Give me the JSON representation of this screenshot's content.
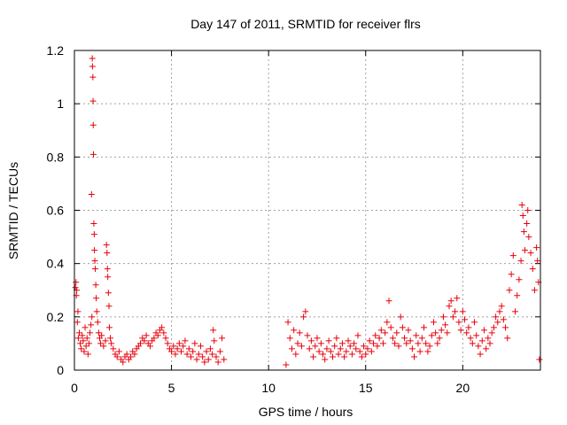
{
  "chart_data": {
    "type": "scatter",
    "title": "Day 147 of 2011, SRMTID for receiver flrs",
    "xlabel": "GPS time / hours",
    "ylabel": "SRMTID / TECUs",
    "xlim": [
      0,
      24
    ],
    "ylim": [
      0,
      1.2
    ],
    "xticks": [
      0,
      5,
      10,
      15,
      20
    ],
    "xtick_labels": [
      "0",
      "5",
      "10",
      "15",
      "20"
    ],
    "yticks": [
      0,
      0.2,
      0.4,
      0.6,
      0.8,
      1,
      1.2
    ],
    "ytick_labels": [
      "0",
      "0.2",
      "0.4",
      "0.6",
      "0.8",
      "1",
      "1.2"
    ],
    "grid": true,
    "marker": "+",
    "colors": {
      "series": "#e8000b",
      "grid": "#a0a0a0",
      "axis": "#000000"
    },
    "series": [
      {
        "name": "SRMTID",
        "points": [
          [
            0.05,
            0.31
          ],
          [
            0.08,
            0.33
          ],
          [
            0.1,
            0.28
          ],
          [
            0.12,
            0.3
          ],
          [
            0.15,
            0.18
          ],
          [
            0.18,
            0.22
          ],
          [
            0.2,
            0.12
          ],
          [
            0.25,
            0.14
          ],
          [
            0.3,
            0.1
          ],
          [
            0.35,
            0.08
          ],
          [
            0.4,
            0.13
          ],
          [
            0.45,
            0.11
          ],
          [
            0.5,
            0.07
          ],
          [
            0.55,
            0.16
          ],
          [
            0.6,
            0.09
          ],
          [
            0.65,
            0.12
          ],
          [
            0.7,
            0.06
          ],
          [
            0.75,
            0.1
          ],
          [
            0.8,
            0.14
          ],
          [
            0.85,
            0.17
          ],
          [
            0.9,
            0.2
          ],
          [
            0.92,
            1.17
          ],
          [
            0.93,
            1.14
          ],
          [
            0.95,
            1.1
          ],
          [
            0.96,
            1.01
          ],
          [
            0.97,
            0.92
          ],
          [
            0.98,
            0.81
          ],
          [
            0.88,
            0.66
          ],
          [
            1.0,
            0.55
          ],
          [
            1.02,
            0.51
          ],
          [
            1.03,
            0.45
          ],
          [
            1.05,
            0.41
          ],
          [
            1.07,
            0.38
          ],
          [
            1.1,
            0.32
          ],
          [
            1.12,
            0.27
          ],
          [
            1.15,
            0.22
          ],
          [
            1.2,
            0.18
          ],
          [
            1.25,
            0.14
          ],
          [
            1.3,
            0.12
          ],
          [
            1.35,
            0.1
          ],
          [
            1.4,
            0.13
          ],
          [
            1.5,
            0.09
          ],
          [
            1.6,
            0.11
          ],
          [
            1.65,
            0.47
          ],
          [
            1.68,
            0.44
          ],
          [
            1.7,
            0.38
          ],
          [
            1.72,
            0.35
          ],
          [
            1.75,
            0.29
          ],
          [
            1.78,
            0.24
          ],
          [
            1.8,
            0.16
          ],
          [
            1.85,
            0.12
          ],
          [
            1.9,
            0.1
          ],
          [
            2.0,
            0.08
          ],
          [
            2.1,
            0.06
          ],
          [
            2.2,
            0.05
          ],
          [
            2.3,
            0.07
          ],
          [
            2.4,
            0.04
          ],
          [
            2.5,
            0.03
          ],
          [
            2.6,
            0.05
          ],
          [
            2.7,
            0.06
          ],
          [
            2.8,
            0.04
          ],
          [
            2.9,
            0.05
          ],
          [
            3.0,
            0.07
          ],
          [
            3.1,
            0.06
          ],
          [
            3.2,
            0.08
          ],
          [
            3.3,
            0.09
          ],
          [
            3.4,
            0.1
          ],
          [
            3.5,
            0.12
          ],
          [
            3.6,
            0.11
          ],
          [
            3.7,
            0.13
          ],
          [
            3.8,
            0.1
          ],
          [
            3.9,
            0.09
          ],
          [
            4.0,
            0.11
          ],
          [
            4.1,
            0.12
          ],
          [
            4.2,
            0.14
          ],
          [
            4.3,
            0.13
          ],
          [
            4.4,
            0.15
          ],
          [
            4.5,
            0.16
          ],
          [
            4.6,
            0.14
          ],
          [
            4.7,
            0.12
          ],
          [
            4.8,
            0.1
          ],
          [
            4.9,
            0.08
          ],
          [
            5.0,
            0.07
          ],
          [
            5.1,
            0.09
          ],
          [
            5.2,
            0.06
          ],
          [
            5.3,
            0.08
          ],
          [
            5.4,
            0.1
          ],
          [
            5.5,
            0.07
          ],
          [
            5.6,
            0.09
          ],
          [
            5.7,
            0.11
          ],
          [
            5.8,
            0.06
          ],
          [
            5.9,
            0.08
          ],
          [
            6.0,
            0.05
          ],
          [
            6.1,
            0.07
          ],
          [
            6.2,
            0.1
          ],
          [
            6.3,
            0.04
          ],
          [
            6.4,
            0.06
          ],
          [
            6.5,
            0.09
          ],
          [
            6.6,
            0.05
          ],
          [
            6.7,
            0.03
          ],
          [
            6.8,
            0.07
          ],
          [
            6.9,
            0.04
          ],
          [
            7.0,
            0.08
          ],
          [
            7.1,
            0.06
          ],
          [
            7.15,
            0.15
          ],
          [
            7.2,
            0.11
          ],
          [
            7.3,
            0.05
          ],
          [
            7.4,
            0.03
          ],
          [
            7.5,
            0.07
          ],
          [
            7.6,
            0.12
          ],
          [
            7.7,
            0.04
          ],
          [
            10.9,
            0.02
          ],
          [
            11.0,
            0.18
          ],
          [
            11.1,
            0.12
          ],
          [
            11.2,
            0.08
          ],
          [
            11.3,
            0.15
          ],
          [
            11.4,
            0.06
          ],
          [
            11.5,
            0.1
          ],
          [
            11.6,
            0.14
          ],
          [
            11.7,
            0.09
          ],
          [
            11.8,
            0.2
          ],
          [
            11.9,
            0.22
          ],
          [
            12.0,
            0.13
          ],
          [
            12.1,
            0.08
          ],
          [
            12.2,
            0.11
          ],
          [
            12.3,
            0.05
          ],
          [
            12.4,
            0.09
          ],
          [
            12.5,
            0.12
          ],
          [
            12.6,
            0.07
          ],
          [
            12.7,
            0.1
          ],
          [
            12.8,
            0.06
          ],
          [
            12.9,
            0.04
          ],
          [
            13.0,
            0.08
          ],
          [
            13.1,
            0.11
          ],
          [
            13.2,
            0.07
          ],
          [
            13.3,
            0.05
          ],
          [
            13.4,
            0.09
          ],
          [
            13.5,
            0.12
          ],
          [
            13.6,
            0.06
          ],
          [
            13.7,
            0.08
          ],
          [
            13.8,
            0.1
          ],
          [
            13.9,
            0.05
          ],
          [
            14.0,
            0.07
          ],
          [
            14.1,
            0.11
          ],
          [
            14.2,
            0.09
          ],
          [
            14.3,
            0.06
          ],
          [
            14.4,
            0.1
          ],
          [
            14.5,
            0.08
          ],
          [
            14.6,
            0.13
          ],
          [
            14.7,
            0.07
          ],
          [
            14.8,
            0.05
          ],
          [
            14.9,
            0.09
          ],
          [
            15.0,
            0.06
          ],
          [
            15.1,
            0.08
          ],
          [
            15.2,
            0.11
          ],
          [
            15.3,
            0.07
          ],
          [
            15.4,
            0.1
          ],
          [
            15.5,
            0.13
          ],
          [
            15.6,
            0.09
          ],
          [
            15.7,
            0.12
          ],
          [
            15.8,
            0.15
          ],
          [
            15.9,
            0.1
          ],
          [
            16.0,
            0.14
          ],
          [
            16.1,
            0.18
          ],
          [
            16.2,
            0.26
          ],
          [
            16.3,
            0.16
          ],
          [
            16.4,
            0.12
          ],
          [
            16.5,
            0.1
          ],
          [
            16.6,
            0.14
          ],
          [
            16.7,
            0.09
          ],
          [
            16.8,
            0.2
          ],
          [
            16.9,
            0.16
          ],
          [
            17.0,
            0.12
          ],
          [
            17.1,
            0.1
          ],
          [
            17.2,
            0.15
          ],
          [
            17.3,
            0.11
          ],
          [
            17.4,
            0.08
          ],
          [
            17.5,
            0.05
          ],
          [
            17.6,
            0.13
          ],
          [
            17.7,
            0.1
          ],
          [
            17.8,
            0.07
          ],
          [
            17.9,
            0.12
          ],
          [
            18.0,
            0.16
          ],
          [
            18.1,
            0.1
          ],
          [
            18.2,
            0.07
          ],
          [
            18.3,
            0.09
          ],
          [
            18.4,
            0.13
          ],
          [
            18.5,
            0.18
          ],
          [
            18.6,
            0.14
          ],
          [
            18.7,
            0.1
          ],
          [
            18.8,
            0.12
          ],
          [
            18.9,
            0.15
          ],
          [
            19.0,
            0.2
          ],
          [
            19.1,
            0.17
          ],
          [
            19.2,
            0.14
          ],
          [
            19.3,
            0.24
          ],
          [
            19.4,
            0.26
          ],
          [
            19.5,
            0.2
          ],
          [
            19.6,
            0.22
          ],
          [
            19.7,
            0.27
          ],
          [
            19.8,
            0.18
          ],
          [
            19.9,
            0.15
          ],
          [
            20.0,
            0.22
          ],
          [
            20.1,
            0.19
          ],
          [
            20.2,
            0.14
          ],
          [
            20.3,
            0.16
          ],
          [
            20.4,
            0.12
          ],
          [
            20.5,
            0.1
          ],
          [
            20.6,
            0.18
          ],
          [
            20.7,
            0.13
          ],
          [
            20.8,
            0.09
          ],
          [
            20.9,
            0.06
          ],
          [
            21.0,
            0.11
          ],
          [
            21.1,
            0.15
          ],
          [
            21.2,
            0.08
          ],
          [
            21.3,
            0.12
          ],
          [
            21.4,
            0.1
          ],
          [
            21.5,
            0.14
          ],
          [
            21.6,
            0.16
          ],
          [
            21.7,
            0.2
          ],
          [
            21.8,
            0.18
          ],
          [
            21.9,
            0.22
          ],
          [
            22.0,
            0.24
          ],
          [
            22.1,
            0.19
          ],
          [
            22.2,
            0.16
          ],
          [
            22.3,
            0.12
          ],
          [
            22.4,
            0.3
          ],
          [
            22.5,
            0.36
          ],
          [
            22.6,
            0.43
          ],
          [
            22.7,
            0.22
          ],
          [
            22.8,
            0.28
          ],
          [
            22.9,
            0.34
          ],
          [
            23.0,
            0.41
          ],
          [
            23.05,
            0.62
          ],
          [
            23.1,
            0.58
          ],
          [
            23.15,
            0.52
          ],
          [
            23.2,
            0.45
          ],
          [
            23.3,
            0.55
          ],
          [
            23.35,
            0.6
          ],
          [
            23.4,
            0.5
          ],
          [
            23.5,
            0.44
          ],
          [
            23.6,
            0.38
          ],
          [
            23.7,
            0.3
          ],
          [
            23.8,
            0.46
          ],
          [
            23.85,
            0.41
          ],
          [
            23.9,
            0.33
          ],
          [
            23.95,
            0.04
          ]
        ]
      }
    ]
  }
}
